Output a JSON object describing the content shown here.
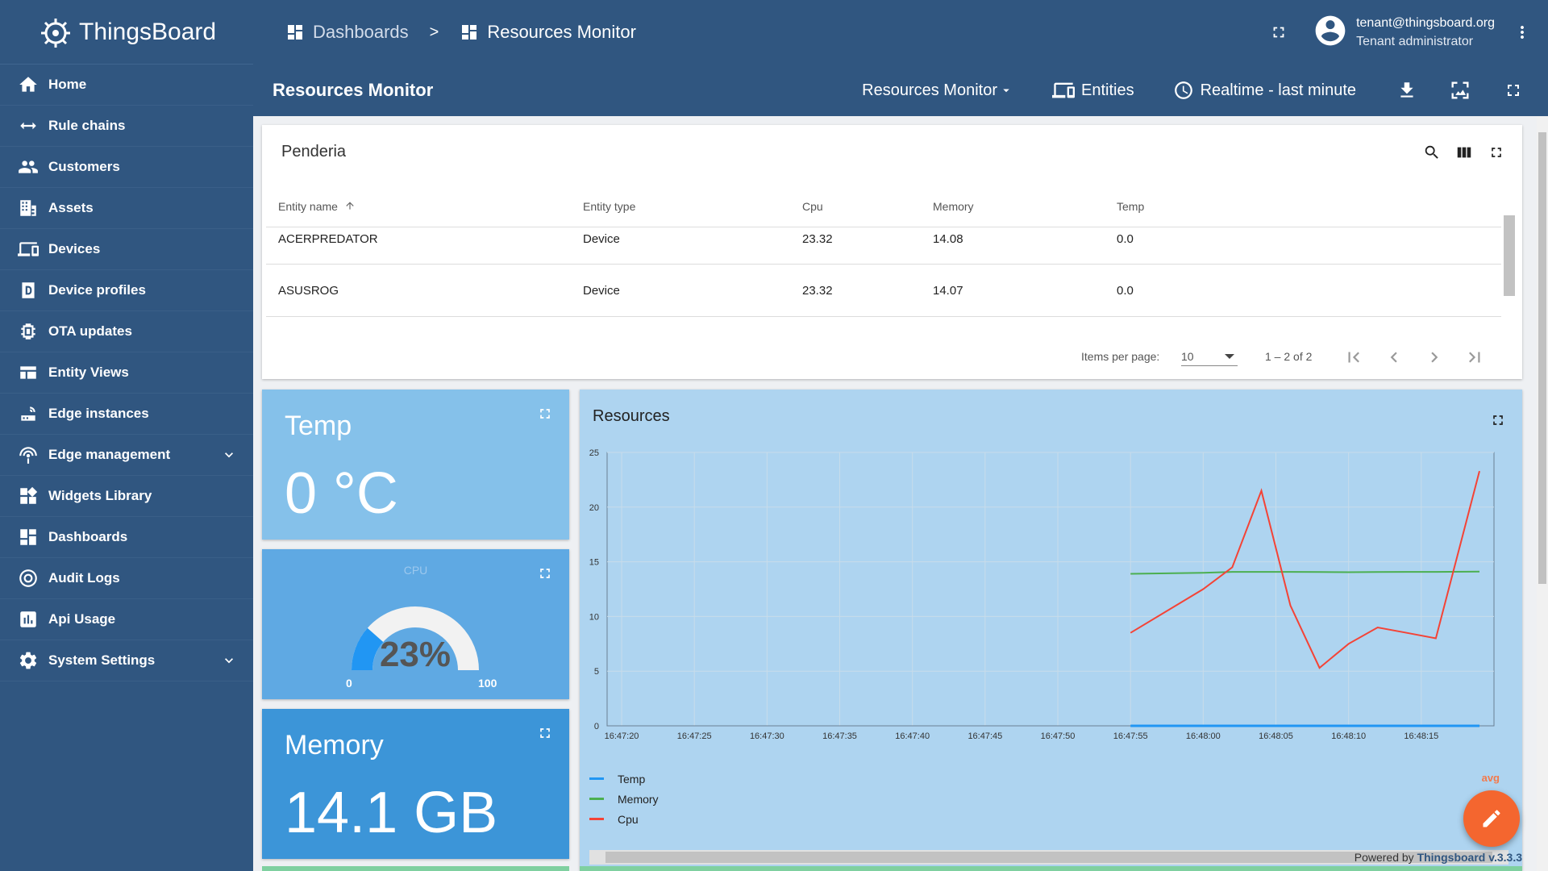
{
  "app": {
    "name": "ThingsBoard"
  },
  "sidebar": {
    "items": [
      {
        "label": "Home",
        "icon": "home-icon"
      },
      {
        "label": "Rule chains",
        "icon": "rule-chains-icon"
      },
      {
        "label": "Customers",
        "icon": "customers-icon"
      },
      {
        "label": "Assets",
        "icon": "assets-icon"
      },
      {
        "label": "Devices",
        "icon": "devices-icon"
      },
      {
        "label": "Device profiles",
        "icon": "device-profiles-icon"
      },
      {
        "label": "OTA updates",
        "icon": "ota-updates-icon"
      },
      {
        "label": "Entity Views",
        "icon": "entity-views-icon"
      },
      {
        "label": "Edge instances",
        "icon": "edge-instances-icon"
      },
      {
        "label": "Edge management",
        "icon": "edge-management-icon"
      },
      {
        "label": "Widgets Library",
        "icon": "widgets-library-icon"
      },
      {
        "label": "Dashboards",
        "icon": "dashboards-icon"
      },
      {
        "label": "Audit Logs",
        "icon": "audit-logs-icon"
      },
      {
        "label": "Api Usage",
        "icon": "api-usage-icon"
      },
      {
        "label": "System Settings",
        "icon": "system-settings-icon"
      }
    ]
  },
  "header": {
    "breadcrumb": [
      "Dashboards",
      "Resources Monitor"
    ],
    "breadcrumb_separator": ">",
    "user_email": "tenant@thingsboard.org",
    "user_role": "Tenant administrator"
  },
  "dashboard": {
    "title": "Resources Monitor",
    "state_select": "Resources Monitor",
    "entities_label": "Entities",
    "timewindow": "Realtime - last minute"
  },
  "table": {
    "title": "Penderia",
    "columns": [
      "Entity name",
      "Entity type",
      "Cpu",
      "Memory",
      "Temp"
    ],
    "rows": [
      [
        "ACERPREDATOR",
        "Device",
        "23.32",
        "14.08",
        "0.0"
      ],
      [
        "ASUSROG",
        "Device",
        "23.32",
        "14.07",
        "0.0"
      ]
    ],
    "items_per_page_label": "Items per page:",
    "items_per_page": "10",
    "range": "1 – 2 of 2"
  },
  "tiles": {
    "temp": {
      "name": "Temp",
      "value": "0 °C"
    },
    "cpu": {
      "title": "CPU",
      "value": "23%",
      "percent": 23,
      "min": "0",
      "max": "100"
    },
    "memory": {
      "name": "Memory",
      "value": "14.1 GB"
    }
  },
  "chart_data": {
    "type": "line",
    "title": "Resources",
    "x": [
      "16:47:55",
      "16:48:00",
      "16:48:02",
      "16:48:04",
      "16:48:06",
      "16:48:08",
      "16:48:10",
      "16:48:12",
      "16:48:14",
      "16:48:16",
      "16:48:19"
    ],
    "x_ticks": [
      "16:47:20",
      "16:47:25",
      "16:47:30",
      "16:47:35",
      "16:47:40",
      "16:47:45",
      "16:47:50",
      "16:47:55",
      "16:48:00",
      "16:48:05",
      "16:48:10",
      "16:48:15"
    ],
    "xlim": [
      "16:47:19",
      "16:48:20"
    ],
    "ylim": [
      0,
      25
    ],
    "y_ticks": [
      0,
      5,
      10,
      15,
      20,
      25
    ],
    "grid": true,
    "legend_placement": "bottom-left",
    "series": [
      {
        "name": "Temp",
        "color": "#2196f3",
        "values": [
          0,
          0,
          0,
          0,
          0,
          0,
          0,
          0,
          0,
          0,
          0
        ]
      },
      {
        "name": "Memory",
        "color": "#4caf50",
        "values": [
          13.9,
          14.0,
          14.08,
          14.08,
          14.08,
          14.07,
          14.05,
          14.07,
          14.08,
          14.08,
          14.1
        ]
      },
      {
        "name": "Cpu",
        "color": "#f44336",
        "values": [
          8.5,
          12.5,
          14.5,
          21.5,
          11.0,
          5.3,
          7.5,
          9.0,
          8.5,
          8.0,
          23.3
        ]
      }
    ],
    "aggregation_header": "avg",
    "aggregation_value": "0"
  },
  "footer": {
    "powered_by": "Powered by",
    "version_link": "Thingsboard v.3.3.3"
  },
  "colors": {
    "primary": "#305680",
    "accent": "#f4662f"
  }
}
